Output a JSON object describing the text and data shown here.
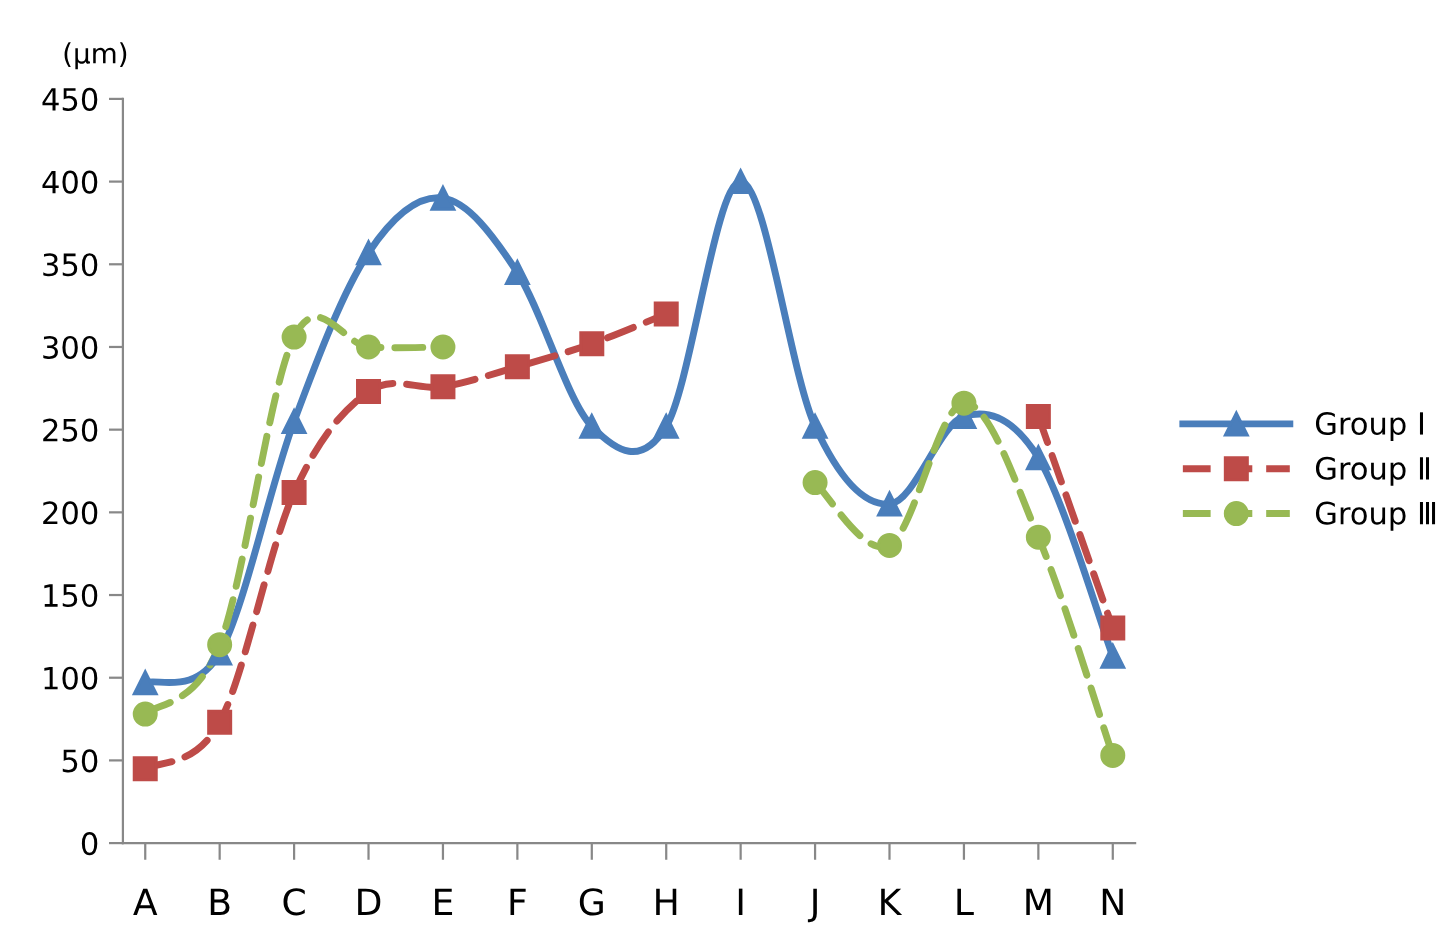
{
  "chart_data": {
    "type": "line",
    "ylabel": "(μm)",
    "categories": [
      "A",
      "B",
      "C",
      "D",
      "E",
      "F",
      "G",
      "H",
      "I",
      "J",
      "K",
      "L",
      "M",
      "N"
    ],
    "series": [
      {
        "name": "Group Ⅰ",
        "color": "#4a7ebb",
        "marker": "triangle",
        "line_style": "solid",
        "values": [
          97,
          115,
          255,
          357,
          390,
          345,
          252,
          252,
          400,
          252,
          205,
          258,
          233,
          113
        ]
      },
      {
        "name": "Group Ⅱ",
        "color": "#be4b48",
        "marker": "square",
        "line_style": "dashed",
        "values": [
          45,
          73,
          212,
          273,
          276,
          288,
          302,
          320,
          null,
          null,
          null,
          null,
          258,
          130
        ]
      },
      {
        "name": "Group Ⅲ",
        "color": "#98b954",
        "marker": "circle",
        "line_style": "dashed",
        "values": [
          78,
          120,
          306,
          300,
          300,
          null,
          null,
          null,
          null,
          218,
          180,
          266,
          185,
          53
        ]
      }
    ],
    "ylim": [
      0,
      450
    ],
    "yticks": [
      0,
      50,
      100,
      150,
      200,
      250,
      300,
      350,
      400,
      450
    ],
    "grid": false,
    "legend": "right"
  }
}
